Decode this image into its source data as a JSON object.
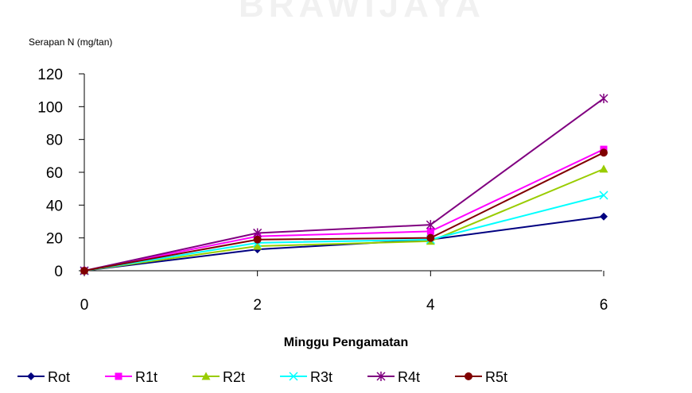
{
  "chart_data": {
    "type": "line",
    "ylabel": "Serapan N (mg/tan)",
    "xlabel": "Minggu Pengamatan",
    "xlim": [
      0,
      6
    ],
    "ylim": [
      0,
      120
    ],
    "x_ticks": [
      "0",
      "2",
      "4",
      "6"
    ],
    "y_ticks": [
      "0",
      "20",
      "40",
      "60",
      "80",
      "100",
      "120"
    ],
    "x": [
      0,
      2,
      4,
      6
    ],
    "legend_position": "bottom",
    "grid": false,
    "series": [
      {
        "name": "Rot",
        "values": [
          0,
          13,
          19,
          33
        ],
        "color": "#000080",
        "marker": "diamond"
      },
      {
        "name": "R1t",
        "values": [
          0,
          21,
          24,
          74
        ],
        "color": "#ff00ff",
        "marker": "square"
      },
      {
        "name": "R2t",
        "values": [
          0,
          15,
          18,
          62
        ],
        "color": "#99cc00",
        "marker": "triangle"
      },
      {
        "name": "R3t",
        "values": [
          0,
          17,
          19,
          46
        ],
        "color": "#00ffff",
        "marker": "x"
      },
      {
        "name": "R4t",
        "values": [
          0,
          23,
          28,
          105
        ],
        "color": "#800080",
        "marker": "star"
      },
      {
        "name": "R5t",
        "values": [
          0,
          19,
          20,
          72
        ],
        "color": "#800000",
        "marker": "circle"
      }
    ]
  }
}
